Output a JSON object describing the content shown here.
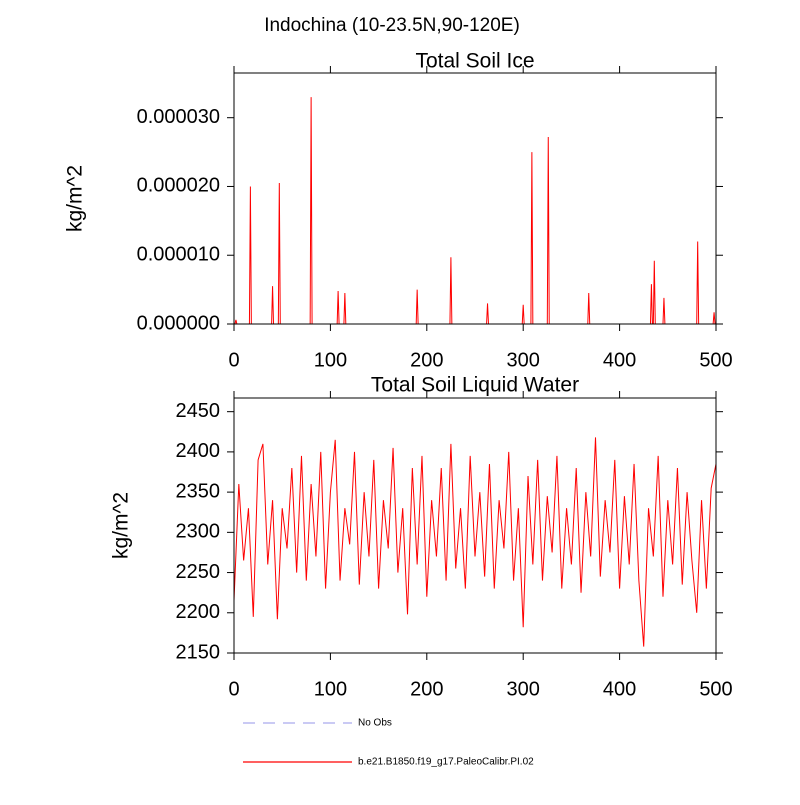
{
  "title": "Indochina (10-23.5N,90-120E)",
  "legend": [
    {
      "name": "No Obs",
      "color": "#aaaaee",
      "dashed": true
    },
    {
      "name": "b.e21.B1850.f19_g17.PaleoCalibr.PI.02",
      "color": "#ff0000",
      "dashed": false
    }
  ],
  "chart_data": [
    {
      "type": "line",
      "title": "Total Soil Ice",
      "ylabel": "kg/m^2",
      "x": [
        0,
        1,
        2,
        3,
        16,
        17,
        18,
        39,
        40,
        41,
        46,
        47,
        48,
        79,
        80,
        81,
        107,
        108,
        109,
        114,
        115,
        116,
        189,
        190,
        191,
        224,
        225,
        226,
        262,
        263,
        264,
        299,
        300,
        301,
        308,
        309,
        310,
        325,
        326,
        327,
        367,
        368,
        369,
        432,
        433,
        434,
        435,
        436,
        437,
        445,
        446,
        447,
        480,
        481,
        482,
        497,
        498,
        499
      ],
      "series": [
        {
          "name": "b.e21.B1850.f19_g17.PaleoCalibr.PI.02",
          "color": "#ff0000",
          "values": [
            0,
            0,
            6e-07,
            0,
            0,
            2e-05,
            0,
            0,
            5.5e-06,
            0,
            0,
            2.05e-05,
            0,
            0,
            3.3e-05,
            0,
            0,
            4.8e-06,
            0,
            0,
            4.5e-06,
            0,
            0,
            5e-06,
            0,
            0,
            9.7e-06,
            0,
            0,
            3e-06,
            0,
            0,
            2.8e-06,
            0,
            0,
            2.5e-05,
            0,
            0,
            2.72e-05,
            0,
            0,
            4.5e-06,
            0,
            0,
            5.8e-06,
            0,
            0,
            9.2e-06,
            0,
            0,
            3.8e-06,
            0,
            0,
            1.2e-05,
            0,
            0,
            1.7e-06,
            0
          ]
        }
      ],
      "xlim": [
        0,
        500
      ],
      "xticks": [
        0,
        100,
        200,
        300,
        400,
        500
      ],
      "ylim": [
        0,
        3.65e-05
      ],
      "yticks": [
        {
          "value": 0,
          "label": "0.000000"
        },
        {
          "value": 1e-05,
          "label": "0.000010"
        },
        {
          "value": 2e-05,
          "label": "0.000020"
        },
        {
          "value": 3e-05,
          "label": "0.000030"
        }
      ]
    },
    {
      "type": "line",
      "title": "Total Soil Liquid Water",
      "ylabel": "kg/m^2",
      "x": [
        0,
        5,
        10,
        15,
        20,
        25,
        30,
        35,
        40,
        45,
        50,
        55,
        60,
        65,
        70,
        75,
        80,
        85,
        90,
        95,
        100,
        105,
        110,
        115,
        120,
        125,
        130,
        135,
        140,
        145,
        150,
        155,
        160,
        165,
        170,
        175,
        180,
        185,
        190,
        195,
        200,
        205,
        210,
        215,
        220,
        225,
        230,
        235,
        240,
        245,
        250,
        255,
        260,
        265,
        270,
        275,
        280,
        285,
        290,
        295,
        300,
        305,
        310,
        315,
        320,
        325,
        330,
        335,
        340,
        345,
        350,
        355,
        360,
        365,
        370,
        375,
        380,
        385,
        390,
        395,
        400,
        405,
        410,
        415,
        420,
        425,
        430,
        435,
        440,
        445,
        450,
        455,
        460,
        465,
        470,
        475,
        480,
        485,
        490,
        495,
        500
      ],
      "series": [
        {
          "name": "b.e21.B1850.f19_g17.PaleoCalibr.PI.02",
          "color": "#ff0000",
          "values": [
            2215,
            2360,
            2265,
            2330,
            2195,
            2390,
            2410,
            2260,
            2340,
            2192,
            2330,
            2280,
            2380,
            2250,
            2395,
            2240,
            2360,
            2270,
            2400,
            2230,
            2350,
            2415,
            2240,
            2330,
            2285,
            2400,
            2235,
            2350,
            2270,
            2390,
            2230,
            2340,
            2280,
            2405,
            2250,
            2330,
            2198,
            2380,
            2260,
            2395,
            2220,
            2340,
            2270,
            2380,
            2240,
            2410,
            2255,
            2330,
            2230,
            2395,
            2270,
            2350,
            2245,
            2385,
            2230,
            2340,
            2280,
            2400,
            2240,
            2330,
            2182,
            2370,
            2260,
            2390,
            2240,
            2345,
            2275,
            2395,
            2230,
            2330,
            2260,
            2380,
            2225,
            2350,
            2270,
            2418,
            2245,
            2340,
            2275,
            2390,
            2230,
            2345,
            2260,
            2385,
            2240,
            2158,
            2330,
            2270,
            2395,
            2220,
            2340,
            2260,
            2380,
            2235,
            2350,
            2265,
            2200,
            2340,
            2230,
            2355,
            2385
          ]
        }
      ],
      "xlim": [
        0,
        500
      ],
      "xticks": [
        0,
        100,
        200,
        300,
        400,
        500
      ],
      "ylim": [
        2150,
        2467
      ],
      "yticks": [
        2150,
        2200,
        2250,
        2300,
        2350,
        2400,
        2450
      ]
    }
  ]
}
